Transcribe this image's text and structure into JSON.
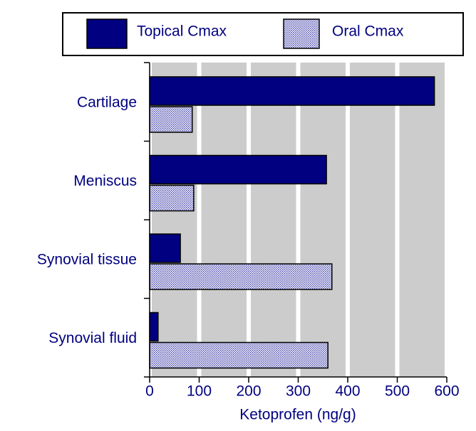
{
  "chart_data": {
    "type": "barh",
    "categories": [
      "Cartilage",
      "Meniscus",
      "Synovial tissue",
      "Synovial fluid"
    ],
    "series": [
      {
        "name": "Topical Cmax",
        "color": "#000080",
        "values": [
          575,
          357,
          62,
          17
        ]
      },
      {
        "name": "Oral Cmax",
        "color": "#000080",
        "pattern": "checker",
        "values": [
          86,
          89,
          368,
          360
        ]
      }
    ],
    "xlabel": "Ketoprofen (ng/g)",
    "xlim": [
      0,
      600
    ],
    "xticks": [
      0,
      100,
      200,
      300,
      400,
      500,
      600
    ],
    "grid": true,
    "legend": "top"
  }
}
